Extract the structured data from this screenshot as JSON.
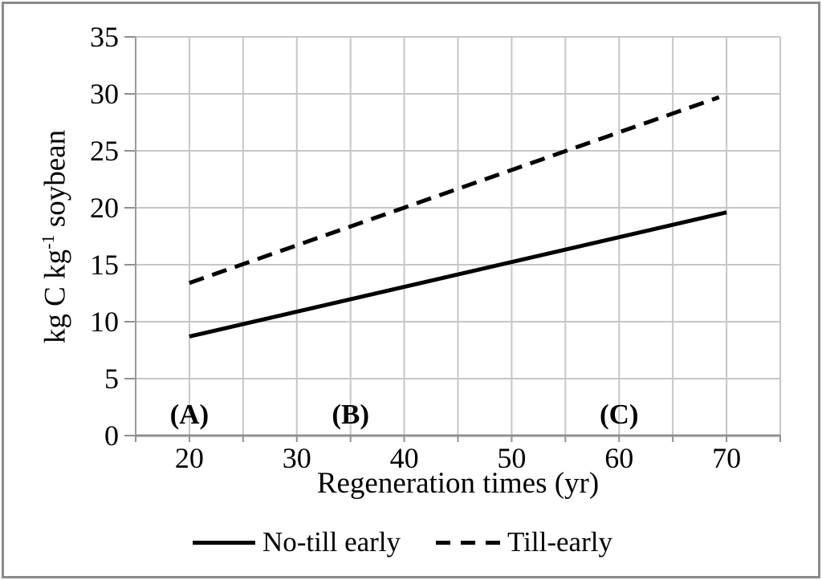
{
  "figure": {
    "background": "#ffffff",
    "border_color": "#8a8a8a"
  },
  "chart_data": {
    "type": "line",
    "xlabel": "Regeneration times (yr)",
    "ylabel": "kg C kg⁻¹ soybean",
    "ylabel_parts": {
      "pre": "kg C kg",
      "sup": "-1",
      "post": " soybean"
    },
    "xlim": [
      15,
      75
    ],
    "ylim": [
      0,
      35
    ],
    "x_ticks": [
      20,
      30,
      40,
      50,
      60,
      70
    ],
    "y_ticks": [
      0,
      5,
      10,
      15,
      20,
      25,
      30,
      35
    ],
    "grid_step_x": 5,
    "grid_step_y": 5,
    "grid": true,
    "grid_color": "#c6c6c6",
    "axis_color": "#8f8f8f",
    "legend_position": "bottom",
    "series": [
      {
        "name": "No-till early",
        "style": "solid",
        "color": "#000000",
        "x": [
          20,
          70
        ],
        "y": [
          8.7,
          19.6
        ]
      },
      {
        "name": "Till-early",
        "style": "dashed",
        "color": "#000000",
        "x": [
          20,
          69.3
        ],
        "y": [
          13.4,
          29.7
        ]
      }
    ],
    "annotations": [
      {
        "label": "(A)",
        "x": 20,
        "y": 1.8
      },
      {
        "label": "(B)",
        "x": 35,
        "y": 1.8
      },
      {
        "label": "(C)",
        "x": 60,
        "y": 1.8
      }
    ]
  }
}
